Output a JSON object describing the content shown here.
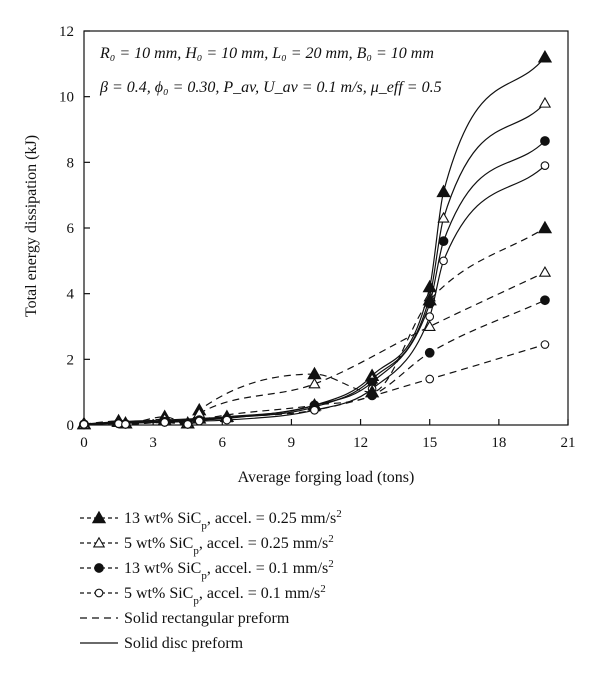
{
  "chart_data": {
    "type": "line",
    "title": "",
    "xlabel": "Average forging load (tons)",
    "ylabel": "Total energy dissipation (kJ)",
    "xlim": [
      0,
      21
    ],
    "ylim": [
      0,
      12
    ],
    "xticks": [
      0,
      3,
      6,
      9,
      12,
      15,
      18,
      21
    ],
    "yticks": [
      0,
      2,
      4,
      6,
      8,
      10,
      12
    ],
    "grid": false,
    "legend_position": "below-plot",
    "annotation_lines": [
      "R₀ = 10 mm, H₀ = 10 mm, L₀ = 20 mm, B₀ = 10 mm",
      "β = 0.4, ϕ₀ = 0.30, P_av, U_av = 0.1 m/s, μ_eff = 0.5"
    ],
    "legend": [
      {
        "text": "13 wt% SiC_p, accel. = 0.25 mm/s²",
        "style": "marker-line",
        "marker": "triangle-filled"
      },
      {
        "text": "5 wt% SiC_p, accel. = 0.25 mm/s²",
        "style": "marker-line",
        "marker": "triangle-open"
      },
      {
        "text": "13 wt% SiC_p, accel. = 0.1 mm/s²",
        "style": "marker-line",
        "marker": "circle-filled"
      },
      {
        "text": "5 wt% SiC_p, accel. = 0.1 mm/s²",
        "style": "marker-line",
        "marker": "circle-open"
      },
      {
        "text": "Solid rectangular preform",
        "style": "dashed"
      },
      {
        "text": "Solid disc preform",
        "style": "solid"
      }
    ],
    "series": [
      {
        "marker": "triangle-filled",
        "line": "solid",
        "x": [
          0,
          1.5,
          3.5,
          5,
          6.2,
          10,
          12.5,
          15,
          15.6,
          20
        ],
        "y": [
          0.03,
          0.1,
          0.15,
          0.2,
          0.25,
          0.6,
          1.5,
          4.2,
          7.1,
          11.2
        ]
      },
      {
        "marker": "triangle-open",
        "line": "solid",
        "x": [
          0,
          1.5,
          3.5,
          5,
          6.2,
          10,
          12.5,
          15,
          15.6,
          20
        ],
        "y": [
          0.03,
          0.08,
          0.12,
          0.18,
          0.22,
          0.55,
          1.4,
          3.9,
          6.3,
          9.8
        ]
      },
      {
        "marker": "circle-filled",
        "line": "solid",
        "x": [
          0,
          1.5,
          3.5,
          5,
          6.2,
          10,
          12.5,
          15,
          15.6,
          20
        ],
        "y": [
          0.02,
          0.06,
          0.1,
          0.15,
          0.2,
          0.6,
          1.3,
          3.7,
          5.6,
          8.65
        ]
      },
      {
        "marker": "circle-open",
        "line": "solid",
        "x": [
          0,
          1.5,
          3.5,
          5,
          6.2,
          10,
          12.5,
          15,
          15.6,
          20
        ],
        "y": [
          0.02,
          0.05,
          0.08,
          0.12,
          0.15,
          0.45,
          1.1,
          3.3,
          5.0,
          7.9
        ]
      },
      {
        "marker": "triangle-filled",
        "line": "dashed",
        "x": [
          0,
          1.5,
          1.8,
          3.5,
          4.5,
          5,
          10,
          12.5,
          15,
          20
        ],
        "y": [
          0.03,
          0.12,
          0.05,
          0.25,
          0.05,
          0.45,
          1.55,
          1.0,
          3.8,
          6.0
        ]
      },
      {
        "marker": "triangle-open",
        "line": "dashed",
        "x": [
          0,
          1.5,
          1.8,
          3.5,
          4.5,
          5,
          10,
          15,
          20
        ],
        "y": [
          0.02,
          0.08,
          0.04,
          0.18,
          0.04,
          0.35,
          1.25,
          3.0,
          4.65
        ]
      },
      {
        "marker": "circle-filled",
        "line": "dashed",
        "x": [
          0,
          1.5,
          1.8,
          3.5,
          4.5,
          5,
          10,
          12.5,
          15,
          20
        ],
        "y": [
          0.02,
          0.05,
          0.03,
          0.1,
          0.03,
          0.15,
          0.6,
          0.9,
          2.2,
          3.8
        ]
      },
      {
        "marker": "circle-open",
        "line": "dashed",
        "x": [
          0,
          1.5,
          1.8,
          3.5,
          4.5,
          5,
          10,
          15,
          20
        ],
        "y": [
          0.02,
          0.04,
          0.02,
          0.08,
          0.02,
          0.12,
          0.45,
          1.4,
          2.45
        ]
      }
    ]
  }
}
